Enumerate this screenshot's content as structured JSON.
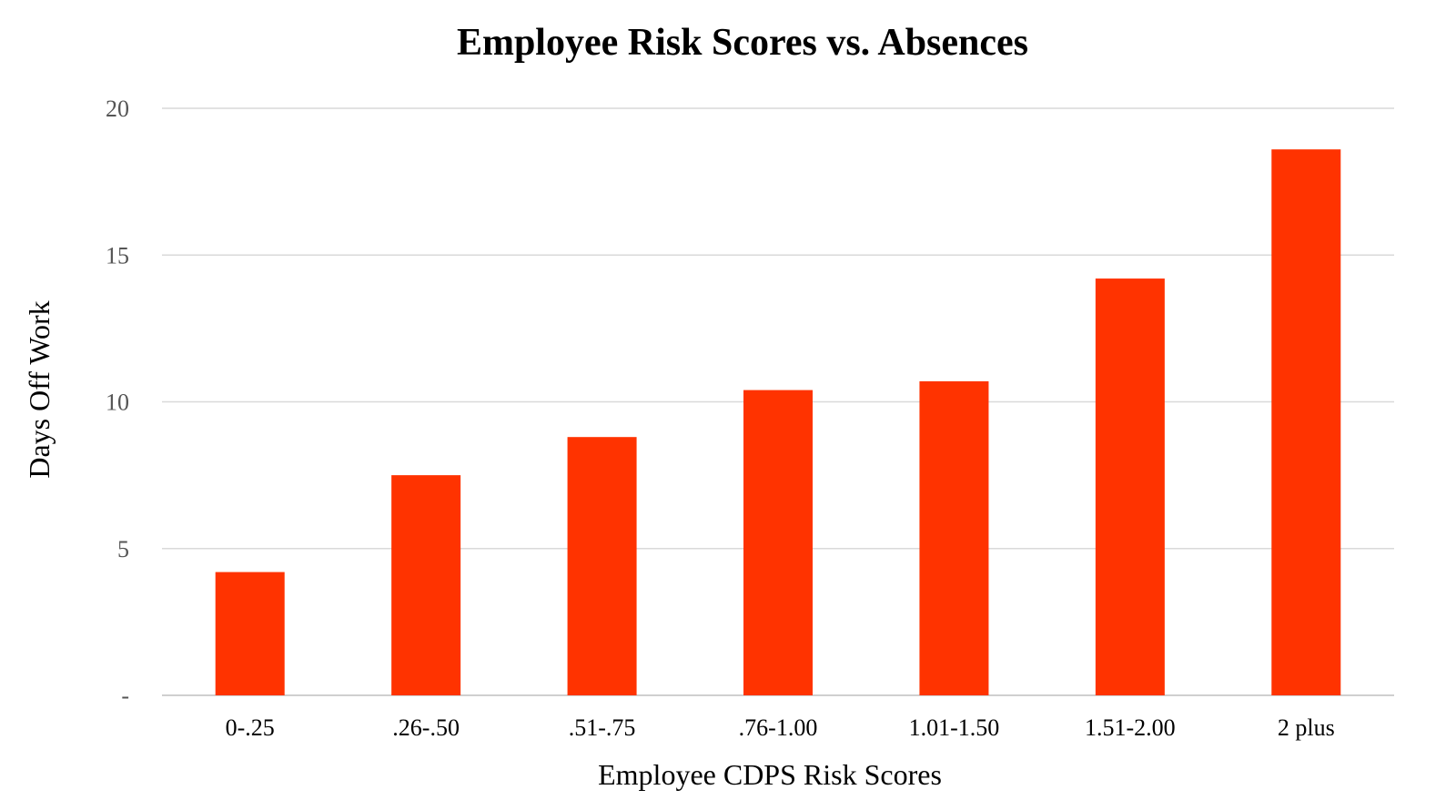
{
  "chart_data": {
    "type": "bar",
    "title": "Employee Risk Scores vs. Absences",
    "xlabel": "Employee CDPS Risk Scores",
    "ylabel": "Days Off Work",
    "categories": [
      "0-.25",
      ".26-.50",
      ".51-.75",
      ".76-1.00",
      "1.01-1.50",
      "1.51-2.00",
      "2 plus"
    ],
    "values": [
      4.2,
      7.5,
      8.8,
      10.4,
      10.7,
      14.2,
      18.6
    ],
    "ylim": [
      0,
      20
    ],
    "yticks": [
      0,
      5,
      10,
      15,
      20
    ],
    "ytick_labels": [
      "-",
      "5",
      "10",
      "15",
      "20"
    ],
    "grid": true,
    "legend": "none",
    "bar_color": "#ff3300"
  }
}
